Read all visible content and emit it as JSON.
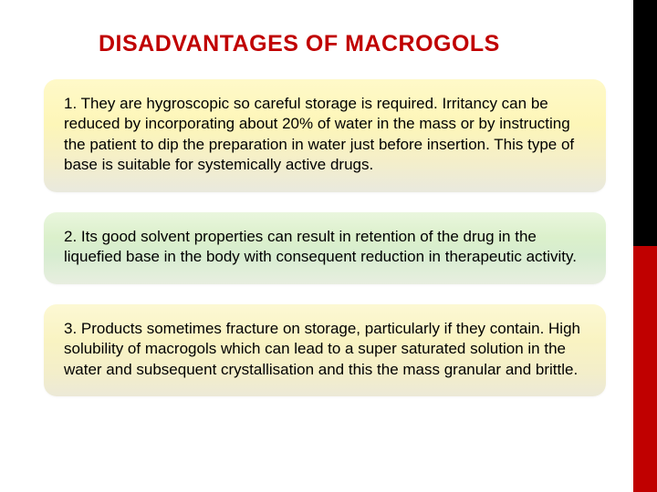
{
  "title": {
    "text": "DISADVANTAGES OF MACROGOLS",
    "color": "#c00000",
    "fontsize": 25
  },
  "cards": [
    {
      "text": "1. They are hygroscopic so careful storage is required. Irritancy can be reduced by incorporating about 20% of water in the mass or by instructing the patient to dip the preparation in water just before insertion. This type of base is suitable for systemically active drugs.",
      "fontsize": 17,
      "color": "#000000"
    },
    {
      "text": "2. Its good solvent properties can result in retention of the drug in the liquefied base in the body with consequent reduction in therapeutic activity.",
      "fontsize": 17,
      "color": "#000000"
    },
    {
      "text": "3. Products sometimes fracture on storage, particularly if they contain. High solubility of macrogols which can lead to a super saturated solution in the water and subsequent crystallisation and this the mass granular and brittle.",
      "fontsize": 17,
      "color": "#000000"
    }
  ],
  "rightbar": {
    "top_color": "#000000",
    "bottom_color": "#c00000"
  }
}
